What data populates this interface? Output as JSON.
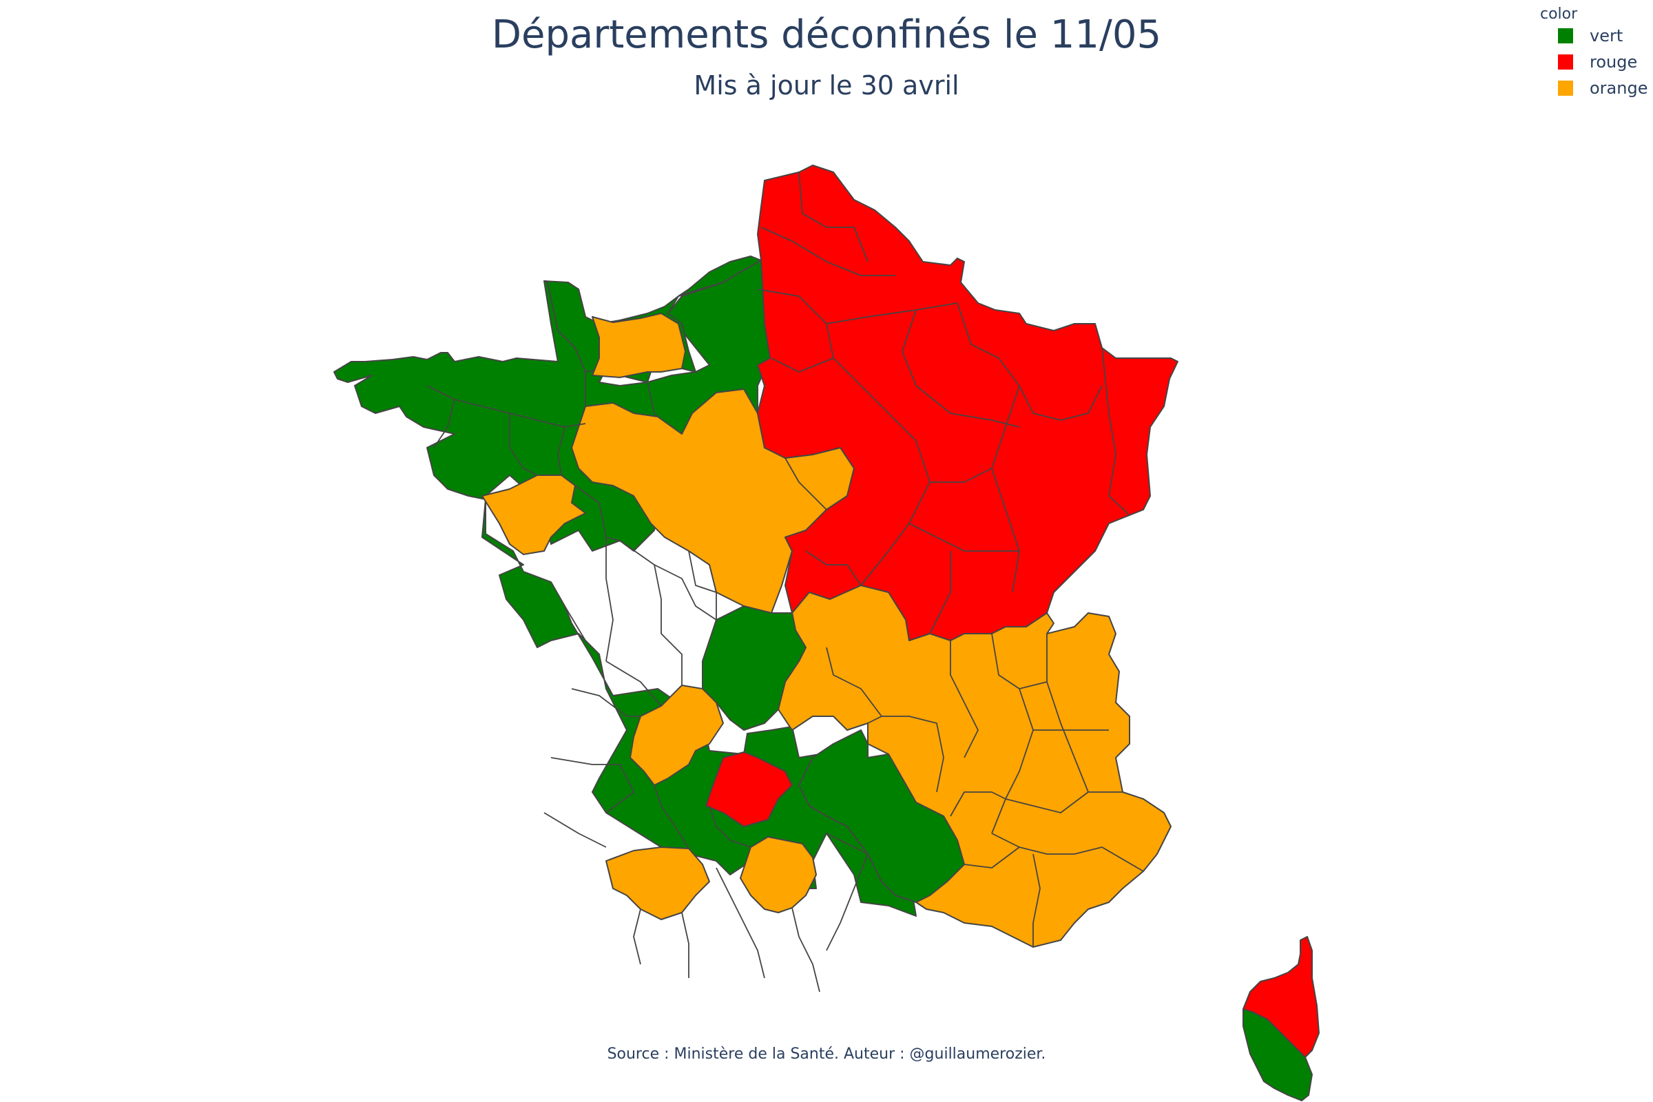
{
  "title": "Départements déconfinés le 11/05",
  "subtitle": "Mis à jour le 30 avril",
  "source": "Source : Ministère de la Santé. Auteur : @guillaumerozier.",
  "legend": {
    "title": "color",
    "items": [
      {
        "label": "vert",
        "color": "#008000"
      },
      {
        "label": "rouge",
        "color": "#ff0000"
      },
      {
        "label": "orange",
        "color": "#ffa500"
      }
    ]
  },
  "colors": {
    "vert": "#008000",
    "rouge": "#ff0000",
    "orange": "#ffa500",
    "border": "#444444"
  }
}
